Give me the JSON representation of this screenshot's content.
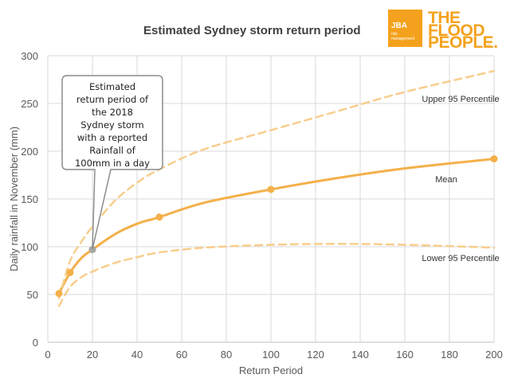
{
  "chart_data": {
    "type": "line",
    "title": "Estimated Sydney storm return period",
    "xlabel": "Return Period",
    "ylabel": "Daily rainfall in November (mm)",
    "xlim": [
      0,
      200
    ],
    "ylim": [
      0,
      300
    ],
    "x_ticks": [
      "0",
      "20",
      "40",
      "60",
      "80",
      "100",
      "120",
      "140",
      "160",
      "180",
      "200"
    ],
    "y_ticks": [
      "0",
      "50",
      "100",
      "150",
      "200",
      "250",
      "300"
    ],
    "grid": true,
    "series": [
      {
        "name": "Mean",
        "style": "solid",
        "color": "#f4b04a",
        "markers": true,
        "x": [
          5,
          10,
          20,
          50,
          100,
          200
        ],
        "values": [
          51,
          73,
          97,
          131,
          160,
          192
        ],
        "curve_x": [
          5,
          10,
          15,
          20,
          30,
          40,
          50,
          70,
          100,
          130,
          160,
          200
        ],
        "curve_y": [
          51,
          73,
          88,
          97,
          113,
          124,
          131,
          146,
          160,
          172,
          182,
          192
        ]
      },
      {
        "name": "Upper 95 Percentile",
        "style": "dashed",
        "color": "#f8cd8c",
        "markers": false,
        "x": [
          5,
          10,
          15,
          20,
          30,
          40,
          50,
          70,
          100,
          130,
          160,
          200
        ],
        "values": [
          46,
          85,
          105,
          121,
          148,
          167,
          181,
          202,
          222,
          242,
          262,
          284
        ]
      },
      {
        "name": "Lower 95 Percentile",
        "style": "dashed",
        "color": "#f8cd8c",
        "markers": false,
        "x": [
          5,
          10,
          15,
          20,
          30,
          40,
          50,
          70,
          100,
          130,
          160,
          200
        ],
        "values": [
          38,
          58,
          68,
          74,
          83,
          89,
          94,
          99,
          102,
          103,
          102,
          99
        ]
      }
    ],
    "highlight_point": {
      "x": 20,
      "y": 97,
      "color": "#a6a6a6"
    },
    "annotation": {
      "lines": [
        "Estimated",
        "return period of",
        "the 2018",
        "Sydney storm",
        "with a reported",
        "Rainfall of",
        "100mm in a day"
      ]
    },
    "series_labels": {
      "upper": "Upper 95 Percentile",
      "mean": "Mean",
      "lower": "Lower 95 Percentile"
    }
  },
  "logo": {
    "jba": "JBA",
    "sub1": "risk",
    "sub2": "management",
    "line1": "THE",
    "line2": "FLOOD",
    "line3": "PEOPLE.",
    "mark": "®",
    "brand_color": "#f4a21d"
  }
}
